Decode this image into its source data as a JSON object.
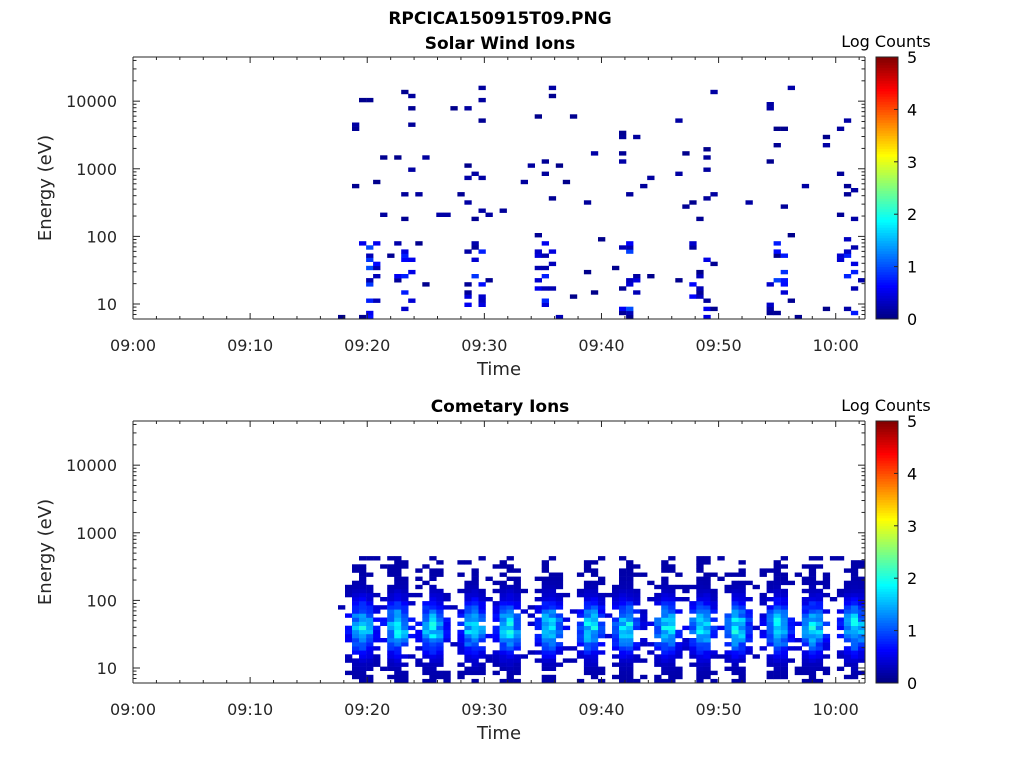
{
  "figure_title": "RPCICA150915T09.PNG",
  "chart_data": [
    {
      "type": "heatmap",
      "title": "Solar Wind Ions",
      "xlabel": "Time",
      "ylabel": "Energy (eV)",
      "x_ticks": [
        "09:00",
        "09:10",
        "09:20",
        "09:30",
        "09:40",
        "09:50",
        "10:00"
      ],
      "x_range_minutes": [
        0,
        62.5
      ],
      "y_scale": "log",
      "y_ticks": [
        "10",
        "100",
        "1000",
        "10000"
      ],
      "y_range": [
        6,
        45000
      ],
      "colorbar": {
        "label": "Log Counts",
        "range": [
          0,
          5
        ],
        "ticks": [
          "0",
          "1",
          "2",
          "3",
          "4",
          "5"
        ],
        "colormap": "jet"
      },
      "data_start_minute": 17.5,
      "bursts_minute": [
        20,
        23,
        29,
        35,
        42,
        48,
        55,
        61
      ],
      "energy_range_eV": [
        6,
        17000
      ],
      "peak_log_counts": 1.0
    },
    {
      "type": "heatmap",
      "title": "Cometary Ions",
      "xlabel": "Time",
      "ylabel": "Energy (eV)",
      "x_ticks": [
        "09:00",
        "09:10",
        "09:20",
        "09:30",
        "09:40",
        "09:50",
        "10:00"
      ],
      "x_range_minutes": [
        0,
        62.5
      ],
      "y_scale": "log",
      "y_ticks": [
        "10",
        "100",
        "1000",
        "10000"
      ],
      "y_range": [
        6,
        45000
      ],
      "colorbar": {
        "label": "Log Counts",
        "range": [
          0,
          5
        ],
        "ticks": [
          "0",
          "1",
          "2",
          "3",
          "4",
          "5"
        ],
        "colormap": "jet"
      },
      "data_start_minute": 17.5,
      "bursts_minute": [
        19.3,
        22.3,
        25.3,
        28.8,
        31.8,
        35.3,
        38.8,
        41.8,
        45.3,
        48.3,
        51.3,
        54.8,
        57.8,
        61.3
      ],
      "energy_range_eV": [
        6,
        450
      ],
      "peak_log_counts": 2.0
    }
  ]
}
